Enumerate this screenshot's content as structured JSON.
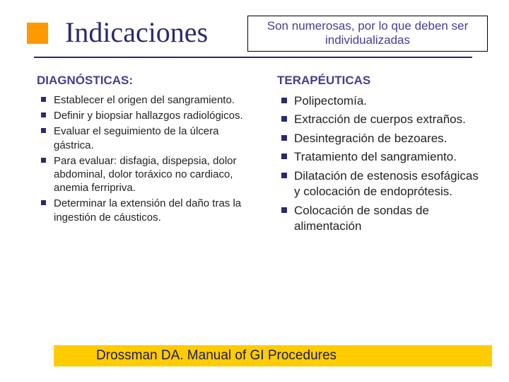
{
  "colors": {
    "accent": "#ff9900",
    "title": "#2a2a70",
    "underline": "#2a2a70",
    "bullet": "#2a2a70",
    "heading": "#4b3b8f",
    "box_text": "#4b3b8f",
    "footer_bg": "#ffcc00",
    "footer_text": "#1a1a60",
    "body_text": "#222222"
  },
  "title": "Indicaciones",
  "box_note": "Son numerosas, por lo que deben ser individualizadas",
  "left": {
    "heading": "DIAGNÓSTICAS:",
    "items": [
      "Establecer el origen del sangramiento.",
      "Definir y biopsiar hallazgos radiológicos.",
      "Evaluar el seguimiento de la úlcera gástrica.",
      "Para evaluar: disfagia, dispepsia, dolor abdominal, dolor toráxico no cardiaco, anemia ferripriva.",
      "Determinar la extensión del daño tras la ingestión de cáusticos."
    ]
  },
  "right": {
    "heading": "TERAPÉUTICAS",
    "items": [
      "Polipectomía.",
      "Extracción de cuerpos extraños.",
      "Desintegración de bezoares.",
      "Tratamiento del sangramiento.",
      "Dilatación de estenosis esofágicas y colocación de endoprótesis.",
      "Colocación de sondas de alimentación"
    ]
  },
  "footer": "Drossman DA. Manual of GI Procedures"
}
